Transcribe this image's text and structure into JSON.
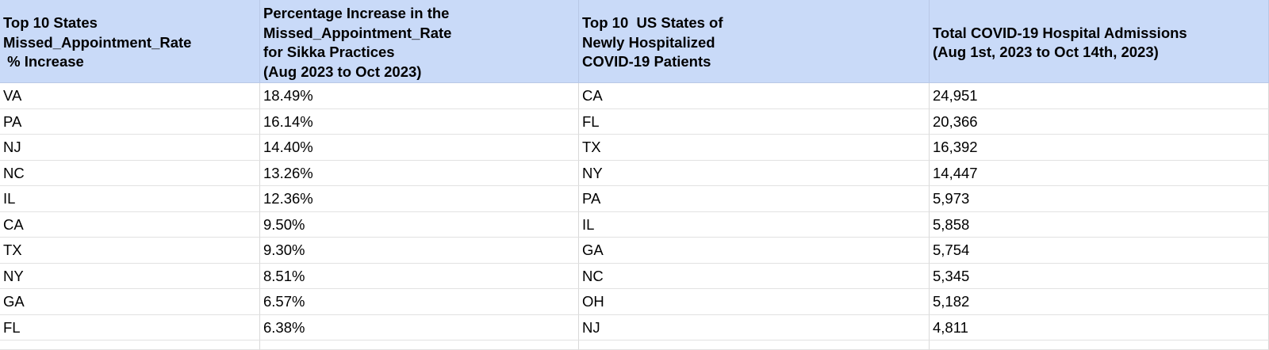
{
  "table": {
    "header": [
      [
        "Top 10 States",
        "Missed_Appointment_Rate",
        " % Increase"
      ],
      [
        "Percentage Increase in the",
        "Missed_Appointment_Rate",
        "for Sikka Practices",
        "(Aug 2023 to Oct 2023)"
      ],
      [
        "Top 10  US States of",
        "Newly Hospitalized",
        "COVID-19 Patients"
      ],
      [
        "Total COVID-19 Hospital Admissions",
        "(Aug 1st, 2023 to Oct 14th, 2023)"
      ]
    ],
    "rows": [
      [
        "VA",
        "18.49%",
        "CA",
        "24,951"
      ],
      [
        "PA",
        "16.14%",
        "FL",
        "20,366"
      ],
      [
        "NJ",
        "14.40%",
        "TX",
        "16,392"
      ],
      [
        "NC",
        "13.26%",
        "NY",
        "14,447"
      ],
      [
        "IL",
        "12.36%",
        "PA",
        "5,973"
      ],
      [
        "CA",
        "9.50%",
        "IL",
        "5,858"
      ],
      [
        "TX",
        "9.30%",
        "GA",
        "5,754"
      ],
      [
        "NY",
        "8.51%",
        "NC",
        "5,345"
      ],
      [
        "GA",
        "6.57%",
        "OH",
        "5,182"
      ],
      [
        "FL",
        "6.38%",
        "NJ",
        "4,811"
      ]
    ]
  }
}
